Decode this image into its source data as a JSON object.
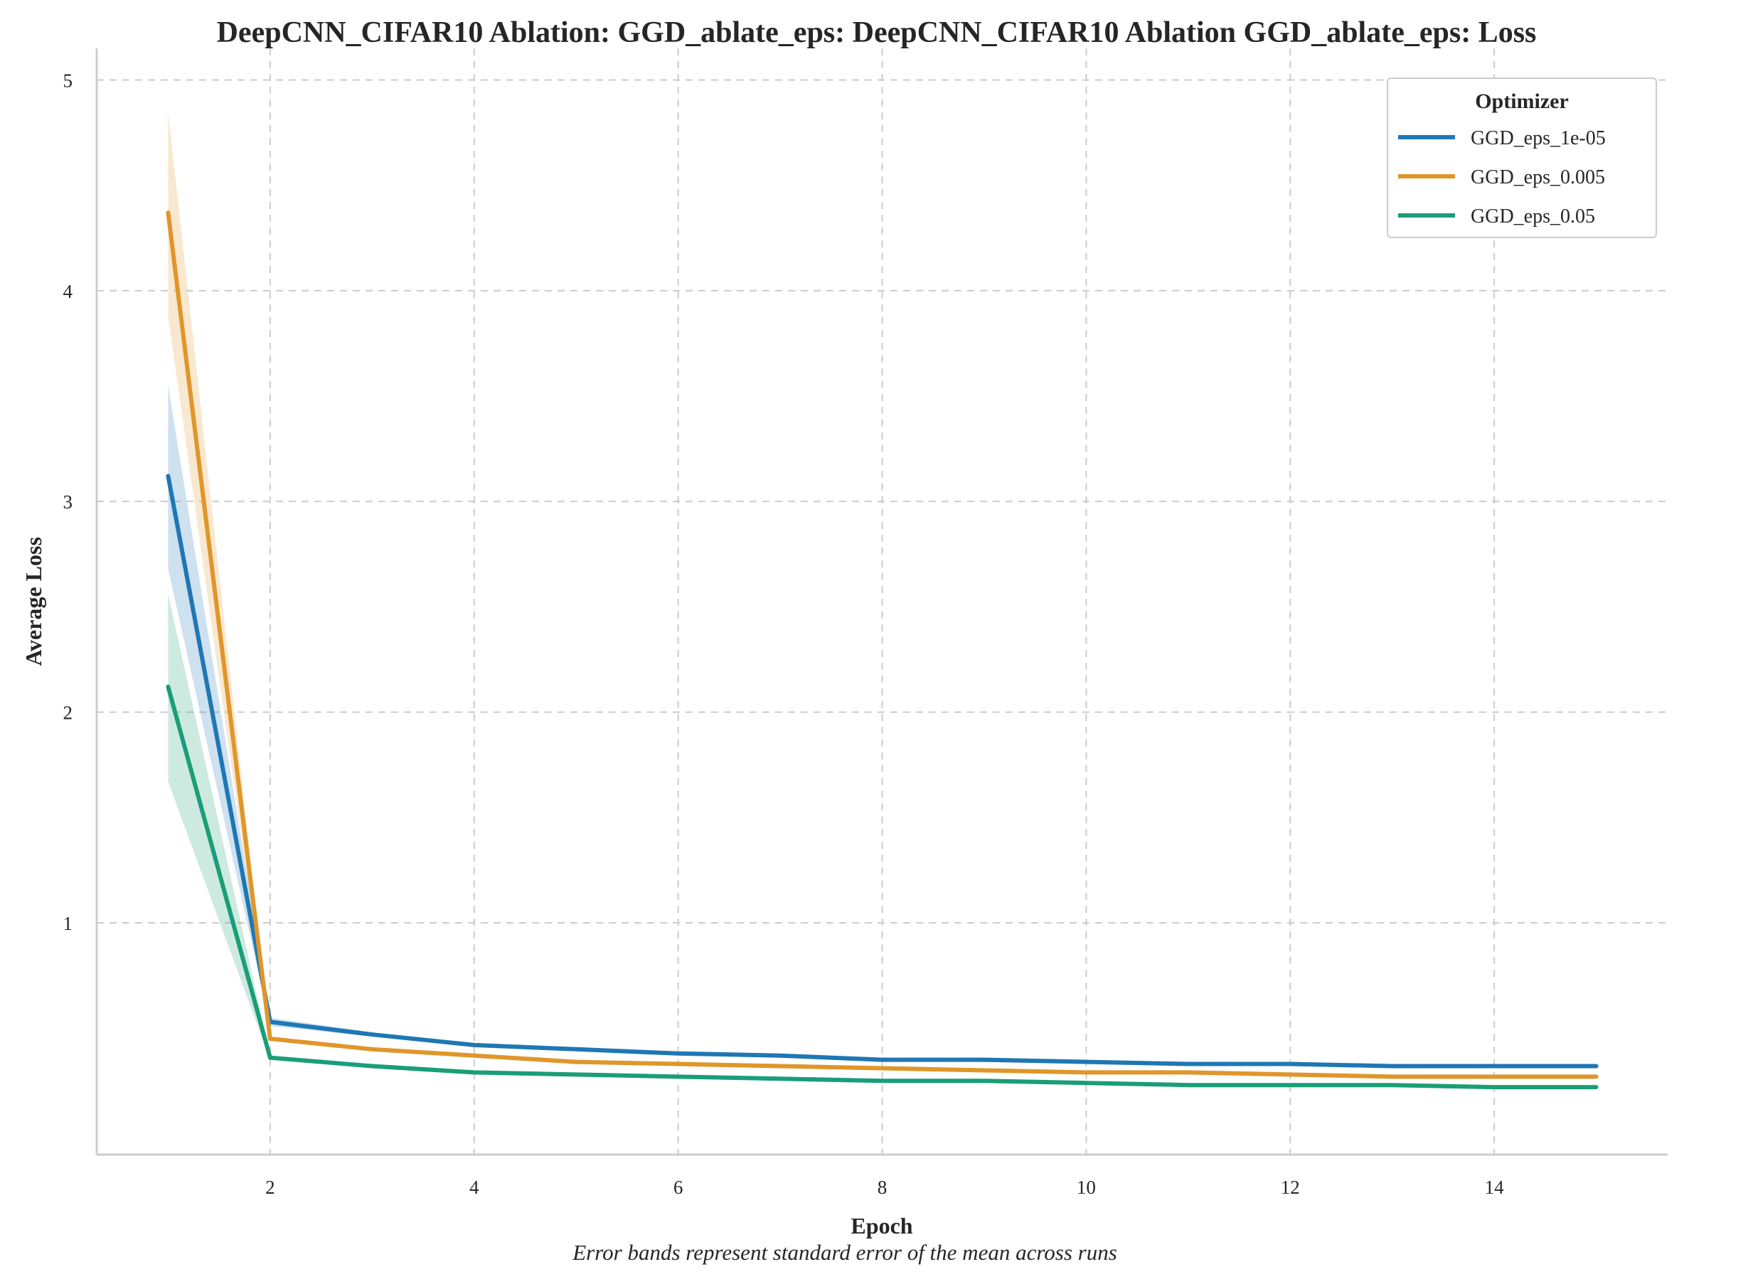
{
  "chart_data": {
    "type": "line",
    "title": "DeepCNN_CIFAR10 Ablation: GGD_ablate_eps: DeepCNN_CIFAR10 Ablation GGD_ablate_eps: Loss",
    "xlabel": "Epoch",
    "ylabel": "Average Loss",
    "caption": "Error bands represent standard error of the mean across runs",
    "xlim": [
      0.3,
      15.7
    ],
    "ylim": [
      -0.1,
      5.15
    ],
    "xticks": [
      2,
      4,
      6,
      8,
      10,
      12,
      14
    ],
    "yticks": [
      1,
      2,
      3,
      4,
      5
    ],
    "grid": true,
    "legend": {
      "title": "Optimizer",
      "position": "top-right"
    },
    "x": [
      1,
      2,
      3,
      4,
      5,
      6,
      7,
      8,
      9,
      10,
      11,
      12,
      13,
      14,
      15
    ],
    "series": [
      {
        "name": "GGD_eps_1e-05",
        "color": "#1f77b4",
        "values": [
          3.12,
          0.53,
          0.47,
          0.42,
          0.4,
          0.38,
          0.37,
          0.35,
          0.35,
          0.34,
          0.33,
          0.33,
          0.32,
          0.32,
          0.32
        ],
        "lower": [
          2.68,
          0.51,
          0.46,
          0.41,
          0.39,
          0.37,
          0.36,
          0.34,
          0.34,
          0.33,
          0.32,
          0.32,
          0.31,
          0.31,
          0.31
        ],
        "upper": [
          3.55,
          0.55,
          0.48,
          0.43,
          0.41,
          0.39,
          0.38,
          0.36,
          0.36,
          0.35,
          0.34,
          0.34,
          0.33,
          0.33,
          0.33
        ]
      },
      {
        "name": "GGD_eps_0.005",
        "color": "#e0962a",
        "values": [
          4.37,
          0.45,
          0.4,
          0.37,
          0.34,
          0.33,
          0.32,
          0.31,
          0.3,
          0.29,
          0.29,
          0.28,
          0.27,
          0.27,
          0.27
        ],
        "lower": [
          3.88,
          0.44,
          0.39,
          0.36,
          0.33,
          0.32,
          0.31,
          0.3,
          0.29,
          0.28,
          0.28,
          0.27,
          0.26,
          0.26,
          0.26
        ],
        "upper": [
          4.85,
          0.46,
          0.41,
          0.38,
          0.35,
          0.34,
          0.33,
          0.32,
          0.31,
          0.3,
          0.3,
          0.29,
          0.28,
          0.28,
          0.28
        ]
      },
      {
        "name": "GGD_eps_0.05",
        "color": "#1a9e77",
        "values": [
          2.12,
          0.36,
          0.32,
          0.29,
          0.28,
          0.27,
          0.26,
          0.25,
          0.25,
          0.24,
          0.23,
          0.23,
          0.23,
          0.22,
          0.22
        ],
        "lower": [
          1.67,
          0.35,
          0.31,
          0.28,
          0.27,
          0.26,
          0.25,
          0.24,
          0.24,
          0.23,
          0.22,
          0.22,
          0.22,
          0.21,
          0.21
        ],
        "upper": [
          2.56,
          0.37,
          0.33,
          0.3,
          0.29,
          0.28,
          0.27,
          0.26,
          0.26,
          0.25,
          0.24,
          0.24,
          0.24,
          0.23,
          0.23
        ]
      }
    ]
  }
}
